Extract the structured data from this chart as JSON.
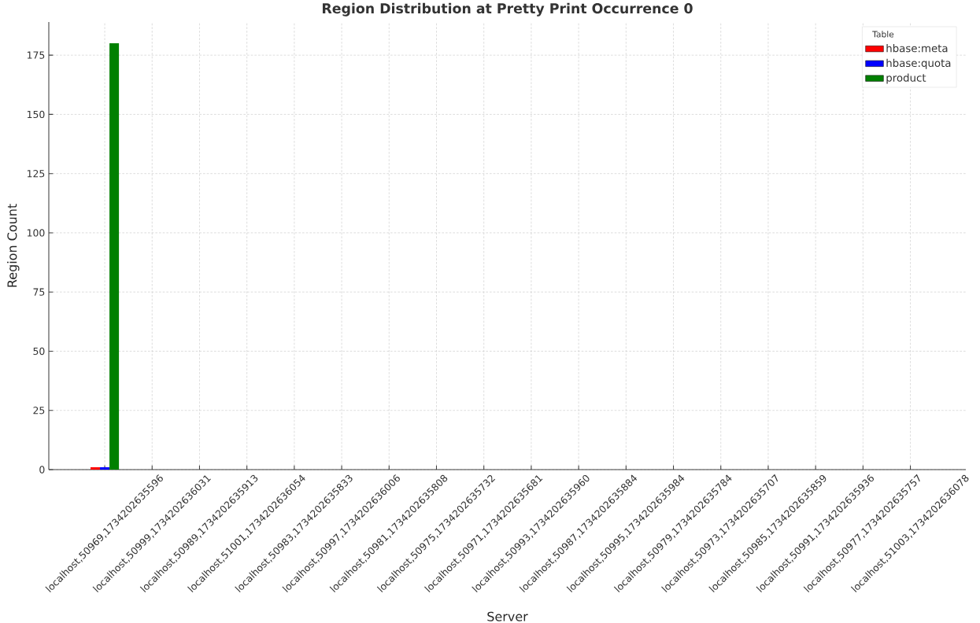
{
  "chart_data": {
    "type": "bar",
    "title": "Region Distribution at Pretty Print Occurrence 0",
    "xlabel": "Server",
    "ylabel": "Region Count",
    "categories": [
      "localhost,50969,1734202635596",
      "localhost,50999,1734202636031",
      "localhost,50989,1734202635913",
      "localhost,51001,1734202636054",
      "localhost,50983,1734202635833",
      "localhost,50997,1734202636006",
      "localhost,50981,1734202635808",
      "localhost,50975,1734202635732",
      "localhost,50971,1734202635681",
      "localhost,50993,1734202635960",
      "localhost,50987,1734202635884",
      "localhost,50995,1734202635984",
      "localhost,50979,1734202635784",
      "localhost,50973,1734202635707",
      "localhost,50985,1734202635859",
      "localhost,50991,1734202635936",
      "localhost,50977,1734202635757",
      "localhost,51003,1734202636078"
    ],
    "series": [
      {
        "name": "hbase:meta",
        "color": "#ff0000",
        "values": [
          1,
          null,
          null,
          null,
          null,
          null,
          null,
          null,
          null,
          null,
          null,
          null,
          null,
          null,
          null,
          null,
          null,
          null
        ]
      },
      {
        "name": "hbase:quota",
        "color": "#0000ff",
        "values": [
          1,
          null,
          null,
          null,
          null,
          null,
          null,
          null,
          null,
          null,
          null,
          null,
          null,
          null,
          null,
          null,
          null,
          null
        ]
      },
      {
        "name": "product",
        "color": "#008000",
        "values": [
          180,
          null,
          null,
          null,
          null,
          null,
          null,
          null,
          null,
          null,
          null,
          null,
          null,
          null,
          null,
          null,
          null,
          null
        ]
      }
    ],
    "ylim": [
      0,
      189
    ],
    "yticks": [
      0,
      25,
      50,
      75,
      100,
      125,
      150,
      175
    ],
    "grid": true,
    "legend": "top right",
    "legend_title": "Table"
  }
}
